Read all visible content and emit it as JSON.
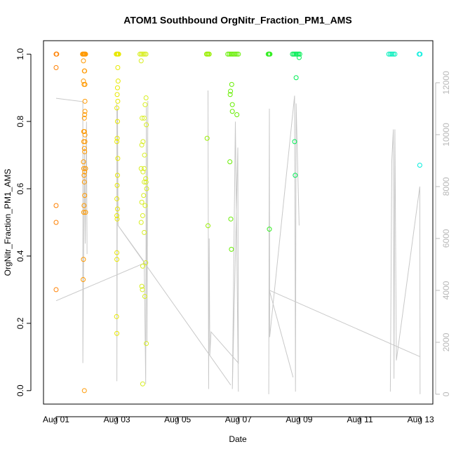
{
  "chart_data": {
    "type": "scatter",
    "title": "ATOM1 Southbound OrgNitr_Fraction_PM1_AMS",
    "x_label": "Date",
    "y_label": "OrgNitr_Fraction_PM1_AMS",
    "xlim": [
      0.585,
      13.4
    ],
    "xticks": [
      {
        "value": 1,
        "label": "Aug 01"
      },
      {
        "value": 3,
        "label": "Aug 03"
      },
      {
        "value": 5,
        "label": "Aug 05"
      },
      {
        "value": 7,
        "label": "Aug 07"
      },
      {
        "value": 9,
        "label": "Aug 09"
      },
      {
        "value": 11,
        "label": "Aug 11"
      },
      {
        "value": 13,
        "label": "Aug 13"
      }
    ],
    "ylim": [
      -0.04,
      1.04
    ],
    "yticks": [
      {
        "value": 0,
        "label": "0.0"
      },
      {
        "value": 0.2,
        "label": "0.2"
      },
      {
        "value": 0.4,
        "label": "0.4"
      },
      {
        "value": 0.6,
        "label": "0.6"
      },
      {
        "value": 0.8,
        "label": "0.8"
      },
      {
        "value": 1,
        "label": "1.0"
      }
    ],
    "y2lim": [
      -380,
      13620
    ],
    "y2ticks": [
      0,
      2000,
      4000,
      6000,
      8000,
      10000,
      12000
    ],
    "y2_color": "#b8b8b8",
    "series": [
      {
        "color": "#ff8000",
        "x": [
          1.0,
          1.01,
          1.02,
          1.0,
          1.0,
          1.0,
          1.0
        ],
        "values": [
          1.0,
          1.0,
          1.0,
          0.96,
          0.55,
          0.5,
          0.3
        ]
      },
      {
        "color": "#ff9900",
        "x": [
          1.87,
          1.89,
          1.91,
          1.93,
          1.95,
          1.97,
          1.9,
          1.93,
          1.94,
          1.9,
          1.95,
          1.92,
          1.95,
          1.95,
          1.94,
          1.93,
          1.91,
          1.93,
          1.95,
          1.91,
          1.95,
          1.93,
          1.94,
          1.9,
          1.91,
          1.97,
          1.94,
          1.92,
          1.93,
          1.94,
          1.92,
          1.91,
          1.97,
          1.9,
          1.89,
          1.93
        ],
        "values": [
          1.0,
          1.0,
          1.0,
          1.0,
          1.0,
          1.0,
          0.98,
          0.95,
          0.95,
          0.92,
          0.91,
          0.91,
          0.86,
          0.83,
          0.82,
          0.81,
          0.77,
          0.77,
          0.76,
          0.74,
          0.74,
          0.72,
          0.71,
          0.68,
          0.66,
          0.66,
          0.65,
          0.64,
          0.62,
          0.58,
          0.55,
          0.53,
          0.53,
          0.39,
          0.33,
          0.0
        ]
      },
      {
        "color": "#e8e800",
        "x": [
          2.98,
          3.0,
          3.02,
          3.04,
          3.06,
          3.03,
          3.04,
          3.02,
          3.01,
          3.03,
          3.0,
          3.02,
          3.01,
          3.0,
          3.03,
          3.02,
          3.01,
          3.0,
          3.02,
          3.0,
          3.01,
          3.0,
          3.0,
          2.99,
          3.0
        ],
        "values": [
          1.0,
          1.0,
          1.0,
          1.0,
          1.0,
          0.96,
          0.92,
          0.9,
          0.88,
          0.86,
          0.84,
          0.8,
          0.75,
          0.74,
          0.69,
          0.64,
          0.61,
          0.57,
          0.54,
          0.52,
          0.51,
          0.41,
          0.39,
          0.22,
          0.17
        ]
      },
      {
        "color": "#d8ee22",
        "x": [
          3.76,
          3.8,
          3.84,
          3.88,
          3.92,
          3.96,
          3.8,
          3.96,
          3.93,
          3.83,
          3.9,
          3.97,
          3.86,
          3.82,
          3.91,
          3.8,
          3.9,
          3.86,
          3.95,
          3.9,
          3.96,
          3.98,
          3.88,
          3.82,
          3.93,
          3.85,
          3.8,
          3.9,
          3.95,
          3.85,
          3.82,
          3.84,
          3.92,
          3.97,
          3.85
        ],
        "values": [
          1.0,
          1.0,
          1.0,
          1.0,
          1.0,
          1.0,
          0.98,
          0.87,
          0.85,
          0.81,
          0.81,
          0.79,
          0.74,
          0.73,
          0.7,
          0.66,
          0.66,
          0.65,
          0.63,
          0.62,
          0.62,
          0.6,
          0.58,
          0.56,
          0.55,
          0.52,
          0.5,
          0.47,
          0.38,
          0.37,
          0.31,
          0.3,
          0.28,
          0.14,
          0.02
        ]
      },
      {
        "color": "#99ee00",
        "x": [
          5.95,
          5.98,
          6.01,
          6.04,
          5.97,
          6.0
        ],
        "values": [
          1.0,
          1.0,
          1.0,
          1.0,
          0.75,
          0.49
        ]
      },
      {
        "color": "#66ee00",
        "x": [
          6.65,
          6.7,
          6.75,
          6.8,
          6.85,
          6.9,
          6.95,
          7.0,
          6.78,
          6.74,
          6.73,
          6.8,
          6.8,
          6.95,
          6.72,
          6.75,
          6.77
        ],
        "values": [
          1.0,
          1.0,
          1.0,
          1.0,
          1.0,
          1.0,
          1.0,
          1.0,
          0.91,
          0.89,
          0.88,
          0.85,
          0.83,
          0.82,
          0.68,
          0.51,
          0.42
        ]
      },
      {
        "color": "#33ee22",
        "x": [
          7.98,
          8.0,
          8.02,
          8.04,
          8.02
        ],
        "values": [
          1.0,
          1.0,
          1.0,
          1.0,
          0.48
        ]
      },
      {
        "color": "#00ee55",
        "x": [
          8.78,
          8.82,
          8.86,
          8.9,
          8.94,
          8.98,
          9.02,
          9.0,
          8.9,
          8.85,
          8.87
        ],
        "values": [
          1.0,
          1.0,
          1.0,
          1.0,
          1.0,
          1.0,
          1.0,
          0.99,
          0.93,
          0.74,
          0.64
        ]
      },
      {
        "color": "#00eebb",
        "x": [
          11.95,
          12.0,
          12.05,
          12.1,
          12.15
        ],
        "values": [
          1.0,
          1.0,
          1.0,
          1.0,
          1.0
        ]
      },
      {
        "color": "#00eedd",
        "x": [
          12.95,
          12.98,
          12.97
        ],
        "values": [
          1.0,
          1.0,
          0.67
        ]
      },
      {
        "type": "line",
        "axis": "y2",
        "color": "#c8c8c8",
        "x": [
          1.0,
          1.88,
          1.88,
          1.93,
          1.96,
          2.0,
          2.02,
          null,
          1.0,
          3.9,
          null,
          3.0,
          3.0,
          3.02,
          3.04,
          3.9,
          3.95,
          3.97,
          3.99,
          4.02,
          null,
          3.04,
          6.75,
          null,
          6.0,
          6.02,
          6.04,
          6.06,
          6.1,
          7.0,
          6.98,
          6.8,
          6.9,
          7.0,
          null,
          8.0,
          8.02,
          8.03,
          8.85,
          8.88,
          8.9,
          9.0,
          null,
          8.02,
          8.8,
          null,
          8.03,
          12.97,
          null,
          12.0,
          12.05,
          12.1,
          12.12,
          12.15,
          12.2,
          12.97,
          12.98
        ],
        "values": [
          11400,
          11270,
          1200,
          9500,
          5800,
          10500,
          5400,
          null,
          3600,
          5050,
          null,
          11200,
          500,
          11000,
          6500,
          5100,
          400,
          11100,
          2000,
          11300,
          null,
          6500,
          350,
          null,
          11700,
          200,
          6000,
          1500,
          2400,
          1200,
          9500,
          200,
          10500,
          100,
          null,
          0,
          11000,
          2200,
          11500,
          100,
          11200,
          6500,
          null,
          4000,
          650,
          null,
          4000,
          1450,
          null,
          100,
          9000,
          10200,
          600,
          10200,
          1300,
          8000,
          0
        ]
      }
    ]
  }
}
